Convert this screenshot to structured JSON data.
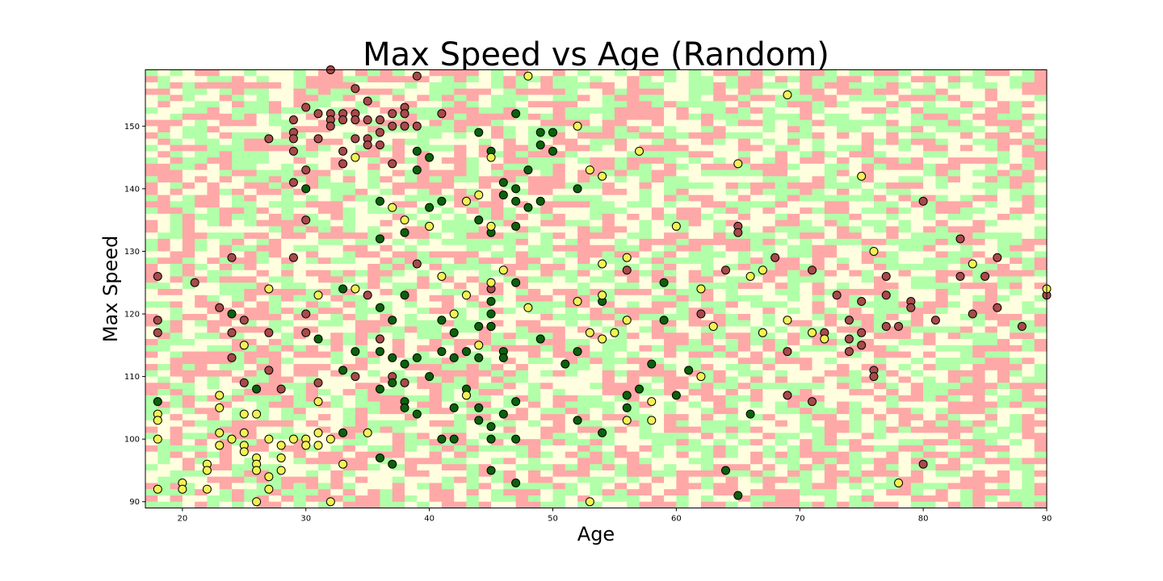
{
  "chart_data": {
    "type": "scatter",
    "title": "Max Speed vs Age (Random)",
    "xlabel": "Age",
    "ylabel": "Max Speed",
    "xlim": [
      17,
      90
    ],
    "ylim": [
      89,
      159
    ],
    "xticks": [
      20,
      30,
      40,
      50,
      60,
      70,
      80,
      90
    ],
    "yticks": [
      90,
      100,
      110,
      120,
      130,
      140,
      150
    ],
    "grid": false,
    "legend": "none",
    "background": {
      "kind": "random-categorical-cells",
      "columns": 73,
      "rows": 70,
      "colors": [
        "#ffa8a8",
        "#b1ffa8",
        "#ffffdf"
      ]
    },
    "colors": {
      "red": "#a84a4a",
      "green": "#0b620b",
      "yellow": "#f2f255"
    },
    "series": [
      {
        "color": "red",
        "points": [
          [
            18,
            126
          ],
          [
            18,
            119
          ],
          [
            18,
            117
          ],
          [
            21,
            125
          ],
          [
            23,
            121
          ],
          [
            24,
            129
          ],
          [
            24,
            117
          ],
          [
            24,
            113
          ],
          [
            25,
            119
          ],
          [
            25,
            109
          ],
          [
            27,
            148
          ],
          [
            27,
            117
          ],
          [
            27,
            111
          ],
          [
            28,
            108
          ],
          [
            29,
            151
          ],
          [
            29,
            149
          ],
          [
            29,
            148
          ],
          [
            29,
            146
          ],
          [
            29,
            141
          ],
          [
            29,
            129
          ],
          [
            30,
            153
          ],
          [
            30,
            143
          ],
          [
            30,
            135
          ],
          [
            30,
            120
          ],
          [
            30,
            117
          ],
          [
            31,
            152
          ],
          [
            31,
            148
          ],
          [
            31,
            109
          ],
          [
            32,
            159
          ],
          [
            32,
            152
          ],
          [
            32,
            151
          ],
          [
            32,
            150
          ],
          [
            33,
            152
          ],
          [
            33,
            151
          ],
          [
            33,
            146
          ],
          [
            33,
            144
          ],
          [
            34,
            156
          ],
          [
            34,
            152
          ],
          [
            34,
            151
          ],
          [
            34,
            148
          ],
          [
            34,
            110
          ],
          [
            35,
            154
          ],
          [
            35,
            151
          ],
          [
            35,
            148
          ],
          [
            35,
            147
          ],
          [
            35,
            123
          ],
          [
            36,
            151
          ],
          [
            36,
            149
          ],
          [
            36,
            147
          ],
          [
            36,
            116
          ],
          [
            37,
            152
          ],
          [
            37,
            150
          ],
          [
            37,
            144
          ],
          [
            37,
            110
          ],
          [
            38,
            153
          ],
          [
            38,
            152
          ],
          [
            38,
            150
          ],
          [
            38,
            109
          ],
          [
            39,
            158
          ],
          [
            39,
            150
          ],
          [
            39,
            128
          ],
          [
            41,
            152
          ],
          [
            45,
            124
          ],
          [
            45,
            118
          ],
          [
            56,
            127
          ],
          [
            62,
            120
          ],
          [
            64,
            127
          ],
          [
            65,
            134
          ],
          [
            65,
            133
          ],
          [
            68,
            129
          ],
          [
            69,
            114
          ],
          [
            69,
            107
          ],
          [
            71,
            127
          ],
          [
            71,
            106
          ],
          [
            72,
            117
          ],
          [
            73,
            123
          ],
          [
            74,
            119
          ],
          [
            74,
            116
          ],
          [
            74,
            114
          ],
          [
            75,
            122
          ],
          [
            75,
            117
          ],
          [
            75,
            115
          ],
          [
            76,
            111
          ],
          [
            76,
            110
          ],
          [
            77,
            126
          ],
          [
            77,
            123
          ],
          [
            77,
            118
          ],
          [
            78,
            118
          ],
          [
            79,
            122
          ],
          [
            79,
            121
          ],
          [
            80,
            138
          ],
          [
            80,
            96
          ],
          [
            81,
            119
          ],
          [
            83,
            132
          ],
          [
            83,
            126
          ],
          [
            84,
            120
          ],
          [
            85,
            126
          ],
          [
            86,
            129
          ],
          [
            86,
            121
          ],
          [
            88,
            118
          ],
          [
            90,
            123
          ]
        ]
      },
      {
        "color": "green",
        "points": [
          [
            18,
            106
          ],
          [
            24,
            120
          ],
          [
            26,
            108
          ],
          [
            30,
            140
          ],
          [
            31,
            116
          ],
          [
            33,
            124
          ],
          [
            33,
            111
          ],
          [
            33,
            101
          ],
          [
            34,
            114
          ],
          [
            36,
            138
          ],
          [
            36,
            132
          ],
          [
            36,
            121
          ],
          [
            36,
            114
          ],
          [
            36,
            108
          ],
          [
            36,
            97
          ],
          [
            37,
            119
          ],
          [
            37,
            113
          ],
          [
            37,
            109
          ],
          [
            37,
            96
          ],
          [
            38,
            133
          ],
          [
            38,
            123
          ],
          [
            38,
            112
          ],
          [
            38,
            106
          ],
          [
            38,
            105
          ],
          [
            39,
            146
          ],
          [
            39,
            143
          ],
          [
            39,
            113
          ],
          [
            39,
            104
          ],
          [
            40,
            145
          ],
          [
            40,
            137
          ],
          [
            40,
            110
          ],
          [
            41,
            138
          ],
          [
            41,
            119
          ],
          [
            41,
            114
          ],
          [
            41,
            100
          ],
          [
            42,
            117
          ],
          [
            42,
            113
          ],
          [
            42,
            105
          ],
          [
            42,
            100
          ],
          [
            43,
            114
          ],
          [
            43,
            108
          ],
          [
            44,
            149
          ],
          [
            44,
            135
          ],
          [
            44,
            118
          ],
          [
            44,
            113
          ],
          [
            44,
            105
          ],
          [
            44,
            103
          ],
          [
            45,
            146
          ],
          [
            45,
            133
          ],
          [
            45,
            122
          ],
          [
            45,
            120
          ],
          [
            45,
            118
          ],
          [
            45,
            102
          ],
          [
            45,
            100
          ],
          [
            45,
            95
          ],
          [
            46,
            141
          ],
          [
            46,
            139
          ],
          [
            46,
            114
          ],
          [
            46,
            113
          ],
          [
            46,
            104
          ],
          [
            47,
            152
          ],
          [
            47,
            140
          ],
          [
            47,
            138
          ],
          [
            47,
            134
          ],
          [
            47,
            125
          ],
          [
            47,
            106
          ],
          [
            47,
            100
          ],
          [
            47,
            93
          ],
          [
            48,
            143
          ],
          [
            48,
            137
          ],
          [
            49,
            149
          ],
          [
            49,
            147
          ],
          [
            49,
            138
          ],
          [
            49,
            116
          ],
          [
            50,
            149
          ],
          [
            50,
            146
          ],
          [
            51,
            112
          ],
          [
            52,
            140
          ],
          [
            52,
            114
          ],
          [
            52,
            103
          ],
          [
            54,
            122
          ],
          [
            54,
            101
          ],
          [
            56,
            107
          ],
          [
            56,
            105
          ],
          [
            57,
            108
          ],
          [
            58,
            112
          ],
          [
            59,
            125
          ],
          [
            59,
            119
          ],
          [
            60,
            107
          ],
          [
            61,
            111
          ],
          [
            64,
            95
          ],
          [
            65,
            91
          ],
          [
            66,
            104
          ]
        ]
      },
      {
        "color": "yellow",
        "points": [
          [
            18,
            104
          ],
          [
            18,
            103
          ],
          [
            18,
            100
          ],
          [
            18,
            92
          ],
          [
            20,
            93
          ],
          [
            20,
            92
          ],
          [
            22,
            96
          ],
          [
            22,
            95
          ],
          [
            22,
            92
          ],
          [
            23,
            107
          ],
          [
            23,
            105
          ],
          [
            23,
            101
          ],
          [
            23,
            99
          ],
          [
            24,
            100
          ],
          [
            25,
            115
          ],
          [
            25,
            104
          ],
          [
            25,
            101
          ],
          [
            25,
            99
          ],
          [
            25,
            98
          ],
          [
            26,
            104
          ],
          [
            26,
            97
          ],
          [
            26,
            96
          ],
          [
            26,
            95
          ],
          [
            26,
            90
          ],
          [
            27,
            124
          ],
          [
            27,
            100
          ],
          [
            27,
            94
          ],
          [
            27,
            92
          ],
          [
            28,
            99
          ],
          [
            28,
            97
          ],
          [
            28,
            95
          ],
          [
            29,
            100
          ],
          [
            30,
            100
          ],
          [
            30,
            99
          ],
          [
            31,
            123
          ],
          [
            31,
            106
          ],
          [
            31,
            101
          ],
          [
            31,
            99
          ],
          [
            32,
            100
          ],
          [
            32,
            90
          ],
          [
            33,
            96
          ],
          [
            34,
            145
          ],
          [
            34,
            124
          ],
          [
            35,
            101
          ],
          [
            37,
            137
          ],
          [
            38,
            135
          ],
          [
            40,
            134
          ],
          [
            41,
            126
          ],
          [
            42,
            120
          ],
          [
            43,
            138
          ],
          [
            43,
            123
          ],
          [
            43,
            107
          ],
          [
            44,
            139
          ],
          [
            44,
            115
          ],
          [
            45,
            145
          ],
          [
            45,
            134
          ],
          [
            45,
            125
          ],
          [
            46,
            127
          ],
          [
            48,
            158
          ],
          [
            48,
            121
          ],
          [
            52,
            150
          ],
          [
            52,
            122
          ],
          [
            53,
            143
          ],
          [
            53,
            117
          ],
          [
            53,
            90
          ],
          [
            54,
            142
          ],
          [
            54,
            128
          ],
          [
            54,
            123
          ],
          [
            54,
            116
          ],
          [
            55,
            117
          ],
          [
            56,
            129
          ],
          [
            56,
            119
          ],
          [
            56,
            103
          ],
          [
            57,
            146
          ],
          [
            58,
            106
          ],
          [
            58,
            103
          ],
          [
            60,
            134
          ],
          [
            62,
            124
          ],
          [
            62,
            110
          ],
          [
            63,
            118
          ],
          [
            65,
            144
          ],
          [
            66,
            126
          ],
          [
            67,
            127
          ],
          [
            67,
            117
          ],
          [
            69,
            155
          ],
          [
            69,
            119
          ],
          [
            71,
            117
          ],
          [
            72,
            116
          ],
          [
            75,
            142
          ],
          [
            76,
            130
          ],
          [
            78,
            93
          ],
          [
            84,
            128
          ],
          [
            90,
            124
          ]
        ]
      }
    ]
  }
}
